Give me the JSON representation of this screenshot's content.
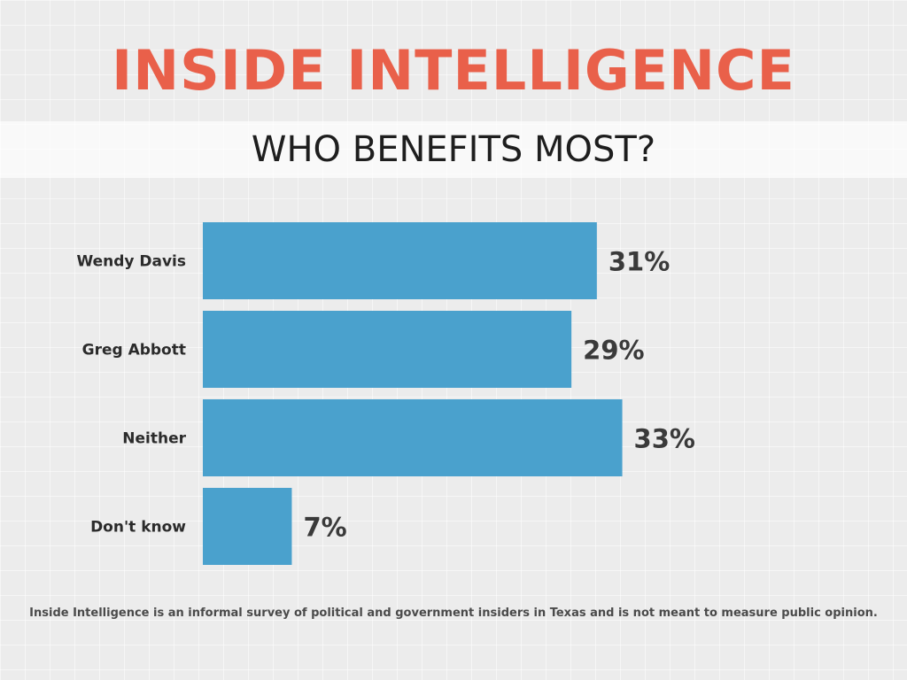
{
  "header": {
    "title": "INSIDE INTELLIGENCE",
    "subtitle": "WHO BENEFITS MOST?"
  },
  "colors": {
    "title": "#e9604a",
    "bar": "#4aa1cd",
    "value_label": "#3a3a3a",
    "category_label": "#2b2b2b"
  },
  "chart_data": {
    "type": "bar",
    "orientation": "horizontal",
    "title": "WHO BENEFITS MOST?",
    "categories": [
      "Wendy Davis",
      "Greg Abbott",
      "Neither",
      "Don't know"
    ],
    "values": [
      31,
      29,
      33,
      7
    ],
    "value_labels": [
      "31%",
      "29%",
      "33%",
      "7%"
    ],
    "xlim": [
      0,
      100
    ],
    "grid": false,
    "legend": "none"
  },
  "footnote": "Inside Intelligence is an informal survey of political and government insiders in Texas and is not meant to measure public opinion."
}
